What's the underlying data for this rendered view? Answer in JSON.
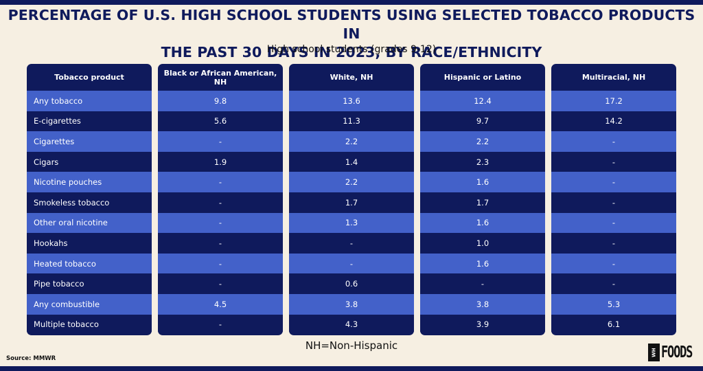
{
  "title_line1": "PERCENTAGE OF U.S. HIGH SCHOOL STUDENTS USING SELECTED TOBACCO PRODUCTS IN",
  "title_line2": "THE PAST 30 DAYS IN 2023, BY RACE/ETHNICITY",
  "subtitle": "High school students (grades 9-12)",
  "note": "NH=Non-Hispanic",
  "source": "Source: MMWR",
  "logo": {
    "box_text": "WH",
    "text": "FOODS"
  },
  "colors": {
    "navy": "#0f1a5c",
    "blue": "#4361c9",
    "background": "#f6efe2"
  },
  "chart_data": {
    "type": "table",
    "row_header_label": "Tobacco product",
    "columns": [
      "Black or African American, NH",
      "White, NH",
      "Hispanic or Latino",
      "Multiracial, NH"
    ],
    "rows": [
      {
        "label": "Any tobacco",
        "values": [
          "9.8",
          "13.6",
          "12.4",
          "17.2"
        ]
      },
      {
        "label": "E-cigarettes",
        "values": [
          "5.6",
          "11.3",
          "9.7",
          "14.2"
        ]
      },
      {
        "label": "Cigarettes",
        "values": [
          "-",
          "2.2",
          "2.2",
          "-"
        ]
      },
      {
        "label": "Cigars",
        "values": [
          "1.9",
          "1.4",
          "2.3",
          "-"
        ]
      },
      {
        "label": "Nicotine pouches",
        "values": [
          "-",
          "2.2",
          "1.6",
          "-"
        ]
      },
      {
        "label": "Smokeless tobacco",
        "values": [
          "-",
          "1.7",
          "1.7",
          "-"
        ]
      },
      {
        "label": "Other oral nicotine",
        "values": [
          "-",
          "1.3",
          "1.6",
          "-"
        ]
      },
      {
        "label": "Hookahs",
        "values": [
          "-",
          "-",
          "1.0",
          "-"
        ]
      },
      {
        "label": "Heated tobacco",
        "values": [
          "-",
          "-",
          "1.6",
          "-"
        ]
      },
      {
        "label": "Pipe tobacco",
        "values": [
          "-",
          "0.6",
          "-",
          "-"
        ]
      },
      {
        "label": "Any combustible",
        "values": [
          "4.5",
          "3.8",
          "3.8",
          "5.3"
        ]
      },
      {
        "label": "Multiple tobacco",
        "values": [
          "-",
          "4.3",
          "3.9",
          "6.1"
        ]
      }
    ]
  }
}
